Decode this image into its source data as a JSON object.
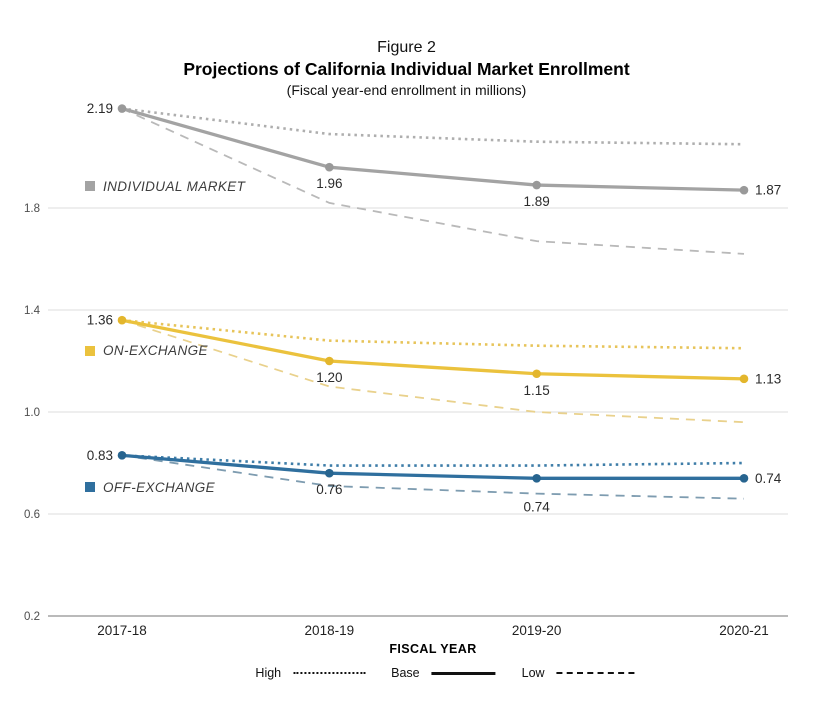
{
  "header": {
    "figure_label": "Figure 2",
    "title": "Projections of California Individual Market Enrollment",
    "subtitle": "(Fiscal year-end enrollment in millions)"
  },
  "chart_data": {
    "type": "line",
    "title": "Projections of California Individual Market Enrollment",
    "subtitle": "Fiscal year-end enrollment in millions",
    "xlabel": "FISCAL YEAR",
    "ylabel": "",
    "x_categories": [
      "2017-18",
      "2018-19",
      "2019-20",
      "2020-21"
    ],
    "y_ticks": [
      {
        "value": 1.8,
        "label": "1.8"
      },
      {
        "value": 1.4,
        "label": "1.4"
      },
      {
        "value": 1.0,
        "label": "1.0"
      },
      {
        "value": 0.6,
        "label": "0.6"
      },
      {
        "value": 0.2,
        "label": "0.2"
      }
    ],
    "ylim": [
      0.2,
      2.3
    ],
    "grid": true,
    "legend_position": "bottom",
    "groups": [
      {
        "name": "INDIVIDUAL MARKET",
        "color": "#a3a3a3",
        "marker_color": "#999999",
        "high_color": "#aeaeae",
        "low_color": "#b9b9b9",
        "series": [
          {
            "name": "Base",
            "style": "solid",
            "values": [
              2.19,
              1.96,
              1.89,
              1.87
            ]
          },
          {
            "name": "High",
            "style": "dotted",
            "values": [
              2.19,
              2.09,
              2.06,
              2.05
            ]
          },
          {
            "name": "Low",
            "style": "dashed",
            "values": [
              2.19,
              1.82,
              1.67,
              1.62
            ]
          }
        ],
        "base_labels": [
          "2.19",
          "1.96",
          "1.89",
          "1.87"
        ],
        "label_placements": [
          "left",
          "below",
          "below",
          "right"
        ],
        "name_anchor_value": 1.88
      },
      {
        "name": "ON-EXCHANGE",
        "color": "#ebc23d",
        "marker_color": "#e3b62c",
        "high_color": "#e7c45a",
        "low_color": "#e9d18c",
        "series": [
          {
            "name": "Base",
            "style": "solid",
            "values": [
              1.36,
              1.2,
              1.15,
              1.13
            ]
          },
          {
            "name": "High",
            "style": "dotted",
            "values": [
              1.36,
              1.28,
              1.26,
              1.25
            ]
          },
          {
            "name": "Low",
            "style": "dashed",
            "values": [
              1.36,
              1.1,
              1.0,
              0.96
            ]
          }
        ],
        "base_labels": [
          "1.36",
          "1.20",
          "1.15",
          "1.13"
        ],
        "label_placements": [
          "left",
          "below",
          "below",
          "right"
        ],
        "name_anchor_value": 1.235
      },
      {
        "name": "OFF-EXCHANGE",
        "color": "#2f6f9e",
        "marker_color": "#27648f",
        "high_color": "#3e7da8",
        "low_color": "#7e9cb0",
        "series": [
          {
            "name": "Base",
            "style": "solid",
            "values": [
              0.83,
              0.76,
              0.74,
              0.74
            ]
          },
          {
            "name": "High",
            "style": "dotted",
            "values": [
              0.83,
              0.79,
              0.79,
              0.8
            ]
          },
          {
            "name": "Low",
            "style": "dashed",
            "values": [
              0.83,
              0.71,
              0.68,
              0.66
            ]
          }
        ],
        "base_labels": [
          "0.83",
          "0.76",
          "0.74",
          "0.74"
        ],
        "label_placements": [
          "left",
          "below",
          "below_far",
          "right"
        ],
        "name_anchor_value": 0.7
      }
    ],
    "scenario_legend": [
      {
        "label": "High",
        "style": "dotted"
      },
      {
        "label": "Base",
        "style": "solid"
      },
      {
        "label": "Low",
        "style": "dashed"
      }
    ]
  }
}
